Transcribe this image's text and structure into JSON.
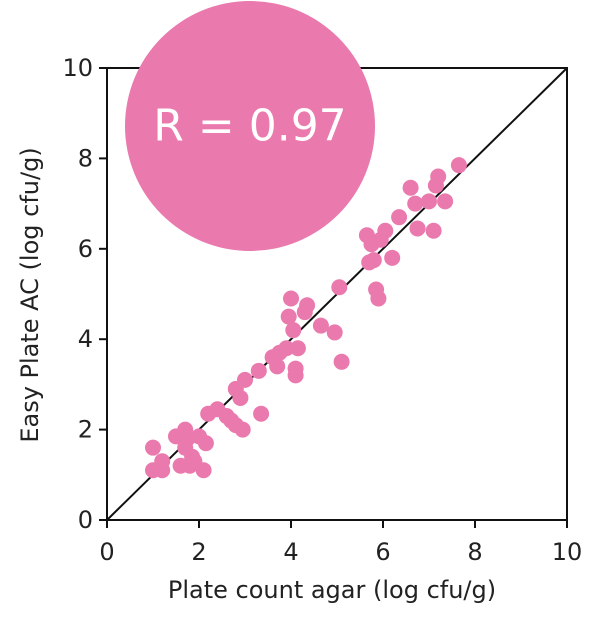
{
  "chart_data": {
    "type": "scatter",
    "title": "",
    "xlabel": "Plate count agar (log cfu/g)",
    "ylabel": "Easy Plate AC (log cfu/g)",
    "xlim": [
      0,
      10
    ],
    "ylim": [
      0,
      10
    ],
    "xticks": [
      "0",
      "2",
      "4",
      "6",
      "8",
      "10"
    ],
    "yticks": [
      "0",
      "2",
      "4",
      "6",
      "8",
      "10"
    ],
    "grid": false,
    "legend": "none",
    "reference_line": {
      "from": [
        0,
        0
      ],
      "to": [
        10,
        10
      ]
    },
    "annotation": "R = 0.97",
    "colors": {
      "points": "#ea79ad",
      "annotation_circle": "#ea79ad",
      "axis": "#111111",
      "reference_line": "#111111"
    },
    "points": [
      [
        1.0,
        1.6
      ],
      [
        1.0,
        1.1
      ],
      [
        1.2,
        1.3
      ],
      [
        1.2,
        1.1
      ],
      [
        1.5,
        1.85
      ],
      [
        1.6,
        1.2
      ],
      [
        1.7,
        2.0
      ],
      [
        1.7,
        1.6
      ],
      [
        1.75,
        1.8
      ],
      [
        1.8,
        1.2
      ],
      [
        1.85,
        1.4
      ],
      [
        1.9,
        1.3
      ],
      [
        2.0,
        1.85
      ],
      [
        2.1,
        1.1
      ],
      [
        2.15,
        1.7
      ],
      [
        2.2,
        2.35
      ],
      [
        2.4,
        2.45
      ],
      [
        2.6,
        2.3
      ],
      [
        2.7,
        2.2
      ],
      [
        2.8,
        2.1
      ],
      [
        2.8,
        2.9
      ],
      [
        2.9,
        2.7
      ],
      [
        2.95,
        2.0
      ],
      [
        3.0,
        3.1
      ],
      [
        3.3,
        3.3
      ],
      [
        3.35,
        2.35
      ],
      [
        3.6,
        3.6
      ],
      [
        3.7,
        3.4
      ],
      [
        3.75,
        3.7
      ],
      [
        3.9,
        3.8
      ],
      [
        3.95,
        4.5
      ],
      [
        4.0,
        4.9
      ],
      [
        4.05,
        4.2
      ],
      [
        4.1,
        3.35
      ],
      [
        4.1,
        3.2
      ],
      [
        4.15,
        3.8
      ],
      [
        4.3,
        4.6
      ],
      [
        4.35,
        4.75
      ],
      [
        4.65,
        4.3
      ],
      [
        4.95,
        4.15
      ],
      [
        5.05,
        5.15
      ],
      [
        5.1,
        3.5
      ],
      [
        5.65,
        6.3
      ],
      [
        5.7,
        5.7
      ],
      [
        5.75,
        6.1
      ],
      [
        5.8,
        5.75
      ],
      [
        5.85,
        5.1
      ],
      [
        5.9,
        4.9
      ],
      [
        5.95,
        6.2
      ],
      [
        6.05,
        6.4
      ],
      [
        6.2,
        5.8
      ],
      [
        6.35,
        6.7
      ],
      [
        6.6,
        7.35
      ],
      [
        6.7,
        7.0
      ],
      [
        6.75,
        6.45
      ],
      [
        7.0,
        7.05
      ],
      [
        7.1,
        6.4
      ],
      [
        7.15,
        7.4
      ],
      [
        7.2,
        7.6
      ],
      [
        7.35,
        7.05
      ],
      [
        7.65,
        7.85
      ]
    ]
  }
}
